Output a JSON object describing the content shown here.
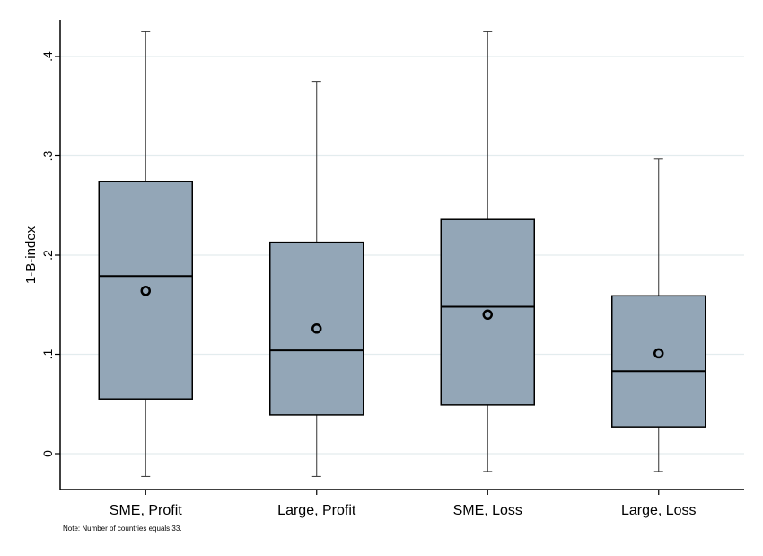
{
  "chart_data": {
    "type": "box",
    "ylabel": "1-B-index",
    "ylim": [
      -0.035,
      0.44
    ],
    "yticks": [
      0,
      0.1,
      0.2,
      0.3,
      0.4
    ],
    "ytick_labels": [
      "0",
      ".1",
      ".2",
      ".3",
      ".4"
    ],
    "grid": true,
    "categories": [
      "SME, Profit",
      "Large, Profit",
      "SME, Loss",
      "Large, Loss"
    ],
    "boxes": [
      {
        "whisker_low": -0.023,
        "q1": 0.055,
        "median": 0.179,
        "q3": 0.274,
        "whisker_high": 0.425,
        "mean": 0.164
      },
      {
        "whisker_low": -0.023,
        "q1": 0.039,
        "median": 0.104,
        "q3": 0.213,
        "whisker_high": 0.375,
        "mean": 0.126
      },
      {
        "whisker_low": -0.018,
        "q1": 0.049,
        "median": 0.148,
        "q3": 0.236,
        "whisker_high": 0.425,
        "mean": 0.14
      },
      {
        "whisker_low": -0.018,
        "q1": 0.027,
        "median": 0.083,
        "q3": 0.159,
        "whisker_high": 0.297,
        "mean": 0.101
      }
    ],
    "colors": {
      "box_fill": "#93a6b7",
      "stroke": "#000000",
      "grid": "#e3ecee"
    }
  },
  "note": "Note: Number of countries equals 33."
}
